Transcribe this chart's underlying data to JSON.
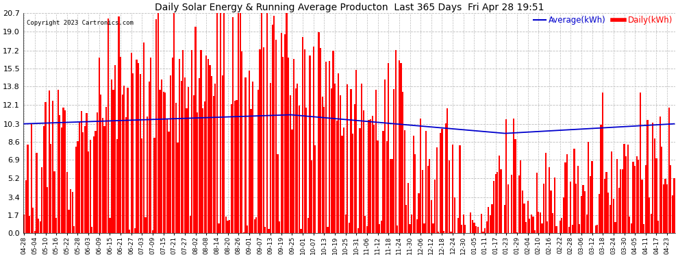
{
  "title": "Daily Solar Energy & Running Average Producton  Last 365 Days  Fri Apr 28 19:51",
  "copyright": "Copyright 2023 Cartronics.com",
  "legend_avg": "Average(kWh)",
  "legend_daily": "Daily(kWh)",
  "yticks": [
    0.0,
    1.7,
    3.4,
    5.2,
    6.9,
    8.6,
    10.3,
    12.1,
    13.8,
    15.5,
    17.2,
    19.0,
    20.7
  ],
  "ylim": [
    0.0,
    20.7
  ],
  "bar_color": "#ff0000",
  "avg_line_color": "#0000cd",
  "background_color": "#ffffff",
  "grid_color": "#bbbbbb",
  "title_color": "#000000",
  "copyright_color": "#000000",
  "figsize": [
    9.9,
    3.75
  ],
  "dpi": 100,
  "x_tick_labels": [
    "04-28",
    "05-04",
    "05-10",
    "05-16",
    "05-22",
    "05-28",
    "06-03",
    "06-09",
    "06-15",
    "06-21",
    "06-27",
    "07-03",
    "07-09",
    "07-15",
    "07-21",
    "07-27",
    "08-02",
    "08-08",
    "08-14",
    "08-20",
    "08-26",
    "09-01",
    "09-07",
    "09-13",
    "09-19",
    "09-25",
    "10-01",
    "10-07",
    "10-13",
    "10-19",
    "10-25",
    "10-31",
    "11-06",
    "11-12",
    "11-18",
    "11-24",
    "11-30",
    "12-06",
    "12-12",
    "12-18",
    "12-24",
    "12-30",
    "01-05",
    "01-11",
    "01-17",
    "01-23",
    "01-29",
    "02-04",
    "02-10",
    "02-16",
    "02-22",
    "02-28",
    "03-06",
    "03-12",
    "03-18",
    "03-24",
    "03-30",
    "04-05",
    "04-11",
    "04-17",
    "04-23"
  ]
}
